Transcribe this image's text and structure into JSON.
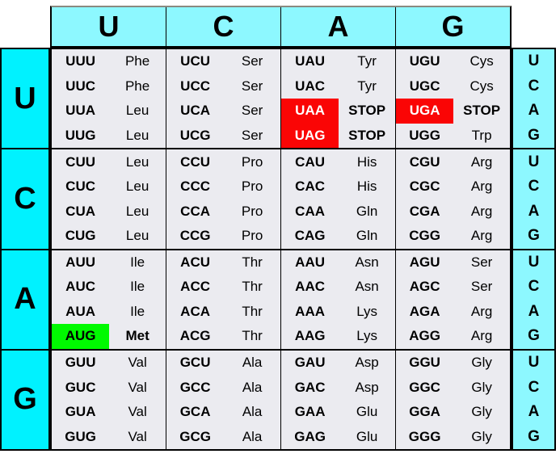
{
  "table": {
    "column_headers": [
      "U",
      "C",
      "A",
      "G"
    ],
    "row_headers": [
      "U",
      "C",
      "A",
      "G"
    ],
    "third_base_labels": [
      "U",
      "C",
      "A",
      "G"
    ],
    "colors": {
      "header_fill": "#8df8ff",
      "row_header_fill": "#00f2ff",
      "cell_fill": "#ebebf0",
      "stop_fill": "#fa0505",
      "stop_text": "#ffffff",
      "start_fill": "#00fa00",
      "border": "#000000"
    },
    "cells": [
      [
        [
          {
            "codon": "UUU",
            "amino": "Phe"
          },
          {
            "codon": "UUC",
            "amino": "Phe"
          },
          {
            "codon": "UUA",
            "amino": "Leu"
          },
          {
            "codon": "UUG",
            "amino": "Leu"
          }
        ],
        [
          {
            "codon": "UCU",
            "amino": "Ser"
          },
          {
            "codon": "UCC",
            "amino": "Ser"
          },
          {
            "codon": "UCA",
            "amino": "Ser"
          },
          {
            "codon": "UCG",
            "amino": "Ser"
          }
        ],
        [
          {
            "codon": "UAU",
            "amino": "Tyr"
          },
          {
            "codon": "UAC",
            "amino": "Tyr"
          },
          {
            "codon": "UAA",
            "amino": "STOP",
            "highlight": "stop"
          },
          {
            "codon": "UAG",
            "amino": "STOP",
            "highlight": "stop"
          }
        ],
        [
          {
            "codon": "UGU",
            "amino": "Cys"
          },
          {
            "codon": "UGC",
            "amino": "Cys"
          },
          {
            "codon": "UGA",
            "amino": "STOP",
            "highlight": "stop"
          },
          {
            "codon": "UGG",
            "amino": "Trp"
          }
        ]
      ],
      [
        [
          {
            "codon": "CUU",
            "amino": "Leu"
          },
          {
            "codon": "CUC",
            "amino": "Leu"
          },
          {
            "codon": "CUA",
            "amino": "Leu"
          },
          {
            "codon": "CUG",
            "amino": "Leu"
          }
        ],
        [
          {
            "codon": "CCU",
            "amino": "Pro"
          },
          {
            "codon": "CCC",
            "amino": "Pro"
          },
          {
            "codon": "CCA",
            "amino": "Pro"
          },
          {
            "codon": "CCG",
            "amino": "Pro"
          }
        ],
        [
          {
            "codon": "CAU",
            "amino": "His"
          },
          {
            "codon": "CAC",
            "amino": "His"
          },
          {
            "codon": "CAA",
            "amino": "Gln"
          },
          {
            "codon": "CAG",
            "amino": "Gln"
          }
        ],
        [
          {
            "codon": "CGU",
            "amino": "Arg"
          },
          {
            "codon": "CGC",
            "amino": "Arg"
          },
          {
            "codon": "CGA",
            "amino": "Arg"
          },
          {
            "codon": "CGG",
            "amino": "Arg"
          }
        ]
      ],
      [
        [
          {
            "codon": "AUU",
            "amino": "Ile"
          },
          {
            "codon": "AUC",
            "amino": "Ile"
          },
          {
            "codon": "AUA",
            "amino": "Ile"
          },
          {
            "codon": "AUG",
            "amino": "Met",
            "highlight": "start"
          }
        ],
        [
          {
            "codon": "ACU",
            "amino": "Thr"
          },
          {
            "codon": "ACC",
            "amino": "Thr"
          },
          {
            "codon": "ACA",
            "amino": "Thr"
          },
          {
            "codon": "ACG",
            "amino": "Thr"
          }
        ],
        [
          {
            "codon": "AAU",
            "amino": "Asn"
          },
          {
            "codon": "AAC",
            "amino": "Asn"
          },
          {
            "codon": "AAA",
            "amino": "Lys"
          },
          {
            "codon": "AAG",
            "amino": "Lys"
          }
        ],
        [
          {
            "codon": "AGU",
            "amino": "Ser"
          },
          {
            "codon": "AGC",
            "amino": "Ser"
          },
          {
            "codon": "AGA",
            "amino": "Arg"
          },
          {
            "codon": "AGG",
            "amino": "Arg"
          }
        ]
      ],
      [
        [
          {
            "codon": "GUU",
            "amino": "Val"
          },
          {
            "codon": "GUC",
            "amino": "Val"
          },
          {
            "codon": "GUA",
            "amino": "Val"
          },
          {
            "codon": "GUG",
            "amino": "Val"
          }
        ],
        [
          {
            "codon": "GCU",
            "amino": "Ala"
          },
          {
            "codon": "GCC",
            "amino": "Ala"
          },
          {
            "codon": "GCA",
            "amino": "Ala"
          },
          {
            "codon": "GCG",
            "amino": "Ala"
          }
        ],
        [
          {
            "codon": "GAU",
            "amino": "Asp"
          },
          {
            "codon": "GAC",
            "amino": "Asp"
          },
          {
            "codon": "GAA",
            "amino": "Glu"
          },
          {
            "codon": "GAG",
            "amino": "Glu"
          }
        ],
        [
          {
            "codon": "GGU",
            "amino": "Gly"
          },
          {
            "codon": "GGC",
            "amino": "Gly"
          },
          {
            "codon": "GGA",
            "amino": "Gly"
          },
          {
            "codon": "GGG",
            "amino": "Gly"
          }
        ]
      ]
    ]
  }
}
